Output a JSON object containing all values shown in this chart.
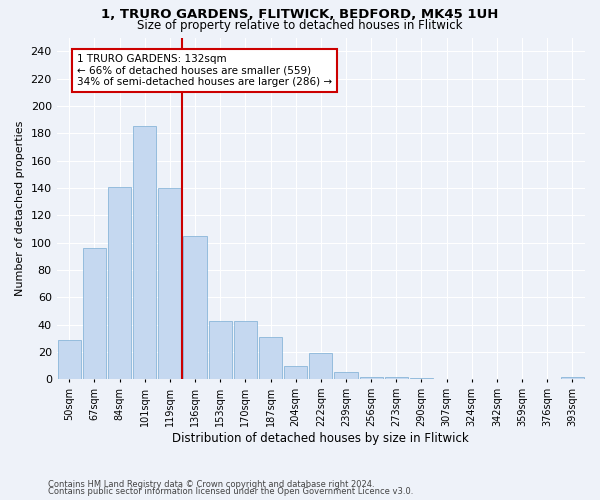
{
  "title1": "1, TRURO GARDENS, FLITWICK, BEDFORD, MK45 1UH",
  "title2": "Size of property relative to detached houses in Flitwick",
  "xlabel": "Distribution of detached houses by size in Flitwick",
  "ylabel": "Number of detached properties",
  "footnote1": "Contains HM Land Registry data © Crown copyright and database right 2024.",
  "footnote2": "Contains public sector information licensed under the Open Government Licence v3.0.",
  "categories": [
    "50sqm",
    "67sqm",
    "84sqm",
    "101sqm",
    "119sqm",
    "136sqm",
    "153sqm",
    "170sqm",
    "187sqm",
    "204sqm",
    "222sqm",
    "239sqm",
    "256sqm",
    "273sqm",
    "290sqm",
    "307sqm",
    "324sqm",
    "342sqm",
    "359sqm",
    "376sqm",
    "393sqm"
  ],
  "values": [
    29,
    96,
    141,
    185,
    140,
    105,
    43,
    43,
    31,
    10,
    19,
    5,
    2,
    2,
    1,
    0,
    0,
    0,
    0,
    0,
    2
  ],
  "bar_color": "#c5d8f0",
  "bar_edgecolor": "#7aadd4",
  "annotation_line1": "1 TRURO GARDENS: 132sqm",
  "annotation_line2": "← 66% of detached houses are smaller (559)",
  "annotation_line3": "34% of semi-detached houses are larger (286) →",
  "annotation_box_color": "#ffffff",
  "annotation_box_edgecolor": "#cc0000",
  "marker_line_color": "#cc0000",
  "ylim": [
    0,
    250
  ],
  "yticks": [
    0,
    20,
    40,
    60,
    80,
    100,
    120,
    140,
    160,
    180,
    200,
    220,
    240
  ],
  "background_color": "#eef2f9"
}
